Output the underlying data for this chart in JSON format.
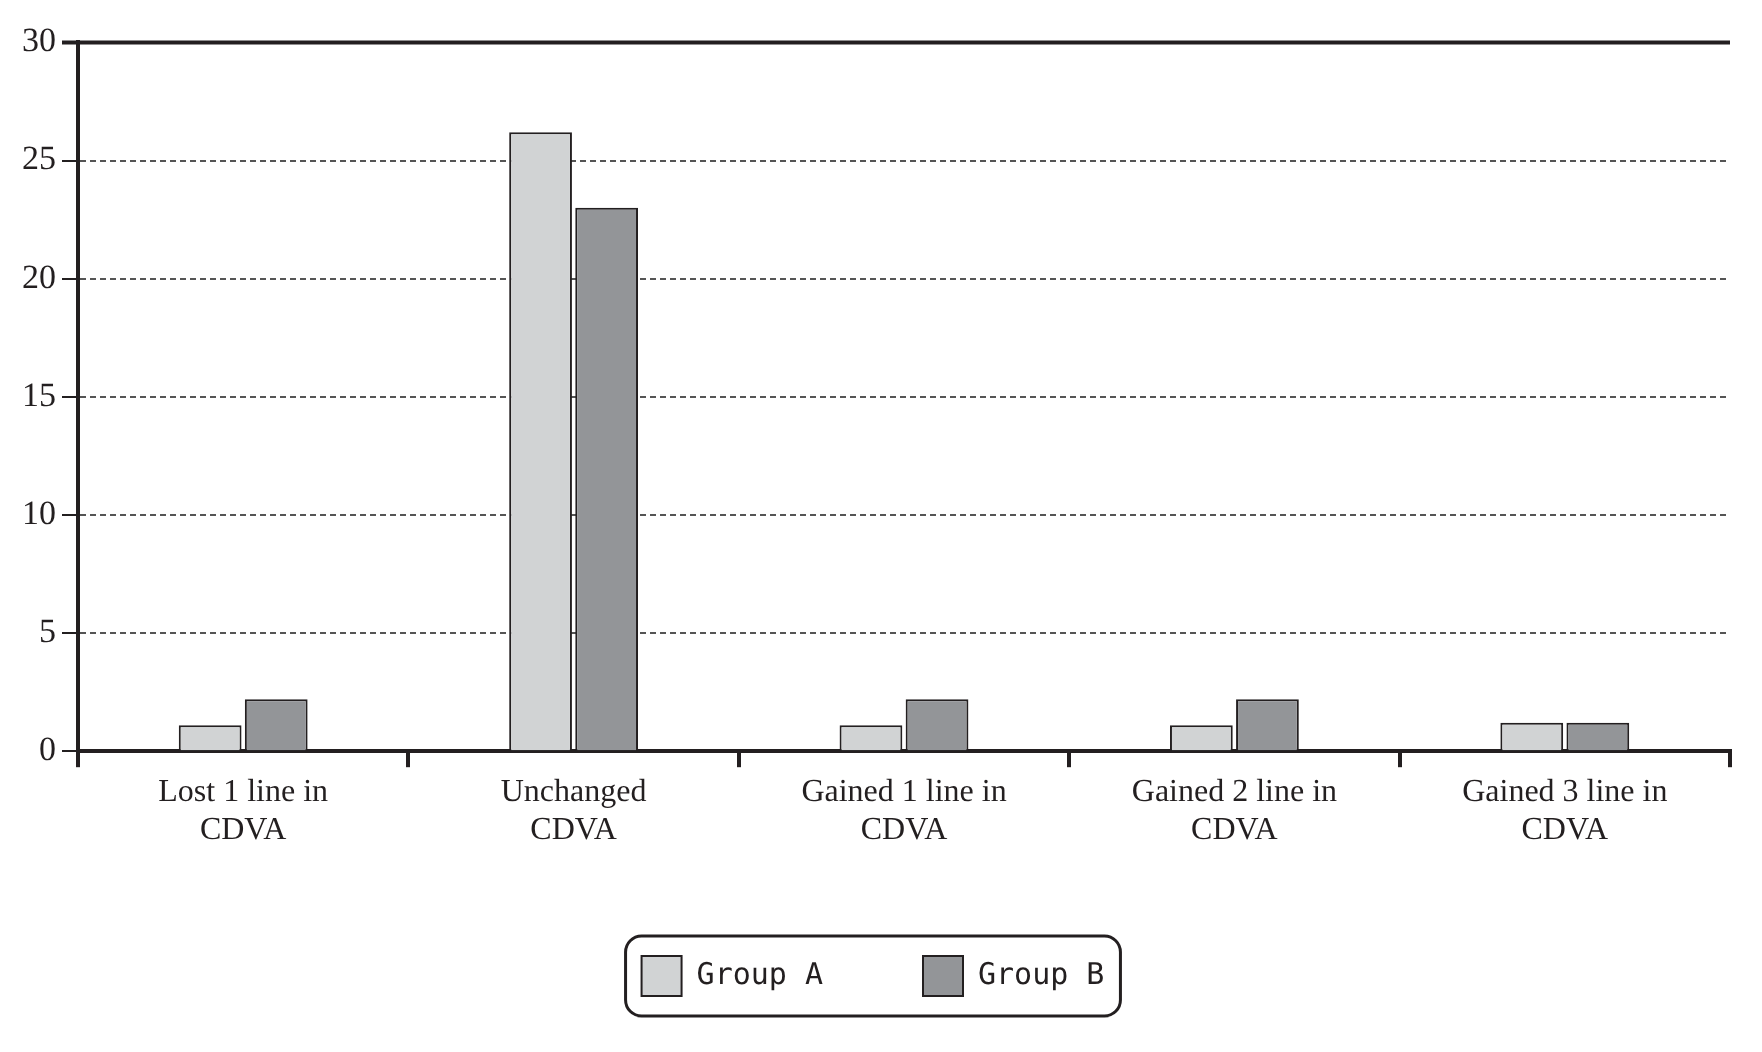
{
  "chart_data": {
    "type": "bar",
    "categories": [
      "Lost 1 line in CDVA",
      "Unchanged CDVA",
      "Gained 1 line in CDVA",
      "Gained 2 line in CDVA",
      "Gained 3 line in CDVA"
    ],
    "series": [
      {
        "name": "Group A",
        "color": "#d1d3d4",
        "values": [
          1.1,
          26.2,
          1.1,
          1.1,
          1.2
        ]
      },
      {
        "name": "Group B",
        "color": "#939598",
        "values": [
          2.2,
          23.0,
          2.2,
          2.2,
          1.2
        ]
      }
    ],
    "ylim": [
      0,
      30
    ],
    "yticks": [
      0,
      5,
      10,
      15,
      20,
      25,
      30
    ],
    "grid": "y",
    "legend": "bottom"
  }
}
